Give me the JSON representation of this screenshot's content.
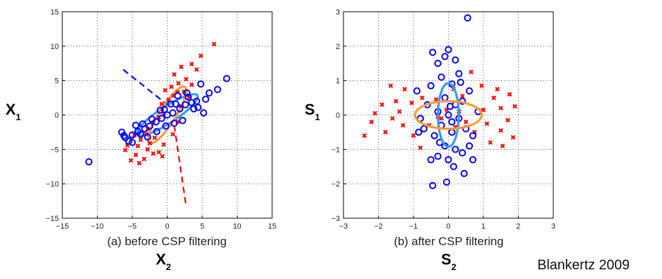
{
  "chart_data": [
    {
      "type": "scatter",
      "caption": "(a) before CSP filtering",
      "y_label": {
        "main": "X",
        "sub": "1"
      },
      "x_label": {
        "main": "X",
        "sub": "2"
      },
      "xlim": [
        -15,
        15
      ],
      "ylim": [
        -15,
        15
      ],
      "xticks": [
        "-15",
        "-10",
        "-5",
        "0",
        "5",
        "10",
        "15"
      ],
      "yticks": [
        "-15",
        "-10",
        "-5",
        "0",
        "5",
        "10",
        "15"
      ],
      "grid": "dotted",
      "series": [
        {
          "marker": "circle",
          "color": "#0000ff",
          "points": [
            [
              -11.2,
              -6.8
            ],
            [
              8.5,
              5.3
            ],
            [
              7.2,
              3.7
            ],
            [
              6.0,
              3.2
            ],
            [
              4.8,
              4.5
            ],
            [
              5.5,
              2.3
            ],
            [
              4.2,
              2.0
            ],
            [
              3.5,
              1.8
            ],
            [
              2.6,
              1.5
            ],
            [
              1.8,
              0.9
            ],
            [
              0.8,
              0.3
            ],
            [
              0.0,
              0.0
            ],
            [
              -0.8,
              -0.5
            ],
            [
              -1.6,
              -1.0
            ],
            [
              -2.5,
              -1.6
            ],
            [
              -3.2,
              -2.0
            ],
            [
              -4.2,
              -2.4
            ],
            [
              -5.0,
              -2.9
            ],
            [
              -6.0,
              -3.3
            ],
            [
              -6.5,
              -2.5
            ],
            [
              -5.5,
              -3.8
            ],
            [
              -4.5,
              -1.5
            ],
            [
              -3.8,
              -2.8
            ],
            [
              -2.2,
              -0.6
            ],
            [
              -1.0,
              0.7
            ],
            [
              0.5,
              1.6
            ],
            [
              1.5,
              2.8
            ],
            [
              2.8,
              3.2
            ],
            [
              3.8,
              0.9
            ],
            [
              2.2,
              -0.8
            ],
            [
              1.0,
              -1.2
            ],
            [
              -0.2,
              -1.6
            ],
            [
              -1.5,
              -2.4
            ],
            [
              -2.8,
              -3.2
            ],
            [
              -5.0,
              -4.0
            ],
            [
              -6.2,
              -3.0
            ],
            [
              -3.5,
              -1.3
            ],
            [
              3.0,
              2.6
            ],
            [
              4.4,
              1.1
            ],
            [
              5.2,
              0.3
            ],
            [
              1.2,
              1.6
            ],
            [
              -0.4,
              0.8
            ]
          ]
        },
        {
          "marker": "x",
          "color": "#ff0000",
          "points": [
            [
              6.7,
              10.3
            ],
            [
              4.8,
              8.6
            ],
            [
              3.5,
              7.4
            ],
            [
              2.0,
              7.0
            ],
            [
              4.2,
              6.6
            ],
            [
              1.0,
              5.9
            ],
            [
              2.7,
              5.2
            ],
            [
              1.6,
              4.6
            ],
            [
              0.6,
              4.1
            ],
            [
              -0.3,
              3.6
            ],
            [
              1.5,
              3.3
            ],
            [
              3.1,
              2.6
            ],
            [
              0.2,
              2.2
            ],
            [
              -0.8,
              1.6
            ],
            [
              2.0,
              1.3
            ],
            [
              -0.5,
              0.2
            ],
            [
              -1.2,
              -0.3
            ],
            [
              -2.0,
              -1.1
            ],
            [
              -2.8,
              -2.0
            ],
            [
              -3.0,
              -2.8
            ],
            [
              -3.8,
              -3.6
            ],
            [
              -4.2,
              -4.5
            ],
            [
              -2.5,
              -4.1
            ],
            [
              -2.0,
              -5.6
            ],
            [
              -3.3,
              -6.4
            ],
            [
              -4.5,
              -5.8
            ],
            [
              -5.2,
              -6.6
            ],
            [
              -1.2,
              -5.4
            ],
            [
              -0.5,
              -4.3
            ],
            [
              -1.8,
              -3.3
            ],
            [
              -4.0,
              -7.0
            ],
            [
              -6.0,
              -5.1
            ],
            [
              0.8,
              -2.8
            ],
            [
              1.5,
              -1.0
            ],
            [
              -2.8,
              -5.0
            ],
            [
              -4.7,
              -2.9
            ],
            [
              -5.7,
              -4.4
            ],
            [
              -0.7,
              -6.0
            ],
            [
              2.4,
              3.4
            ],
            [
              3.5,
              4.4
            ],
            [
              0.9,
              2.8
            ]
          ]
        }
      ]
    },
    {
      "type": "scatter",
      "caption": "(b) after CSP filtering",
      "y_label": {
        "main": "S",
        "sub": "1"
      },
      "x_label": {
        "main": "S",
        "sub": "2"
      },
      "xlim": [
        -3,
        3
      ],
      "ylim": [
        -3,
        3
      ],
      "xticks": [
        "-3",
        "-2",
        "-1",
        "0",
        "1",
        "2",
        "3"
      ],
      "yticks": [
        "-3",
        "-2",
        "-1",
        "0",
        "1",
        "2",
        "3"
      ],
      "grid": "dotted",
      "series": [
        {
          "marker": "circle",
          "color": "#0000ff",
          "points": [
            [
              0.55,
              2.82
            ],
            [
              -0.45,
              1.82
            ],
            [
              -0.1,
              1.7
            ],
            [
              0.0,
              1.9
            ],
            [
              -0.3,
              1.5
            ],
            [
              0.2,
              1.6
            ],
            [
              0.3,
              1.2
            ],
            [
              -0.2,
              1.1
            ],
            [
              0.1,
              0.9
            ],
            [
              -0.5,
              0.85
            ],
            [
              0.6,
              0.7
            ],
            [
              -0.9,
              0.7
            ],
            [
              -0.1,
              0.5
            ],
            [
              0.2,
              0.3
            ],
            [
              0.4,
              0.4
            ],
            [
              -0.3,
              0.1
            ],
            [
              0.0,
              0.0
            ],
            [
              0.3,
              -0.1
            ],
            [
              -0.2,
              -0.3
            ],
            [
              0.1,
              -0.5
            ],
            [
              -0.4,
              -0.6
            ],
            [
              0.5,
              -0.4
            ],
            [
              -0.7,
              -0.4
            ],
            [
              0.7,
              -0.6
            ],
            [
              -0.1,
              -0.9
            ],
            [
              0.2,
              -1.0
            ],
            [
              -0.3,
              -1.2
            ],
            [
              0.0,
              -1.3
            ],
            [
              0.4,
              -1.1
            ],
            [
              -0.5,
              -1.3
            ],
            [
              0.7,
              -1.3
            ],
            [
              0.15,
              -1.5
            ],
            [
              0.45,
              -1.7
            ],
            [
              -0.45,
              -2.05
            ],
            [
              -0.05,
              -1.95
            ],
            [
              -0.85,
              -0.5
            ],
            [
              0.85,
              0.1
            ],
            [
              0.05,
              0.25
            ],
            [
              -0.6,
              0.3
            ],
            [
              0.35,
              0.95
            ],
            [
              0.6,
              -0.9
            ],
            [
              -0.25,
              -0.8
            ],
            [
              0.1,
              -0.2
            ],
            [
              -0.8,
              -0.1
            ]
          ]
        },
        {
          "marker": "x",
          "color": "#ff0000",
          "points": [
            [
              0.65,
              1.25
            ],
            [
              0.95,
              0.85
            ],
            [
              1.4,
              0.75
            ],
            [
              1.3,
              0.5
            ],
            [
              1.75,
              0.6
            ],
            [
              1.5,
              0.2
            ],
            [
              1.9,
              0.25
            ],
            [
              1.7,
              -0.15
            ],
            [
              1.1,
              -0.25
            ],
            [
              1.5,
              -0.45
            ],
            [
              1.85,
              -0.65
            ],
            [
              1.2,
              -0.8
            ],
            [
              0.75,
              -0.5
            ],
            [
              0.5,
              -0.2
            ],
            [
              0.3,
              0.1
            ],
            [
              -0.05,
              0.15
            ],
            [
              -0.35,
              0.45
            ],
            [
              -0.75,
              0.5
            ],
            [
              -1.05,
              0.35
            ],
            [
              -1.25,
              0.75
            ],
            [
              -1.65,
              0.85
            ],
            [
              -1.5,
              0.4
            ],
            [
              -1.9,
              0.3
            ],
            [
              -2.1,
              0.05
            ],
            [
              -2.2,
              -0.2
            ],
            [
              -2.4,
              -0.6
            ],
            [
              -1.8,
              -0.5
            ],
            [
              -1.6,
              -0.1
            ],
            [
              -1.3,
              -0.3
            ],
            [
              -1.0,
              -0.6
            ],
            [
              -0.8,
              -0.95
            ],
            [
              -0.55,
              -0.3
            ],
            [
              -0.2,
              -0.1
            ],
            [
              0.2,
              -0.35
            ],
            [
              0.4,
              0.55
            ],
            [
              0.15,
              0.75
            ],
            [
              -0.3,
              -0.05
            ],
            [
              1.0,
              0.15
            ],
            [
              1.55,
              -0.9
            ],
            [
              -1.4,
              0.1
            ]
          ]
        }
      ],
      "ellipse_colors": [
        "#3399ff",
        "#ff9933"
      ]
    }
  ],
  "credit": "Blankertz 2009"
}
